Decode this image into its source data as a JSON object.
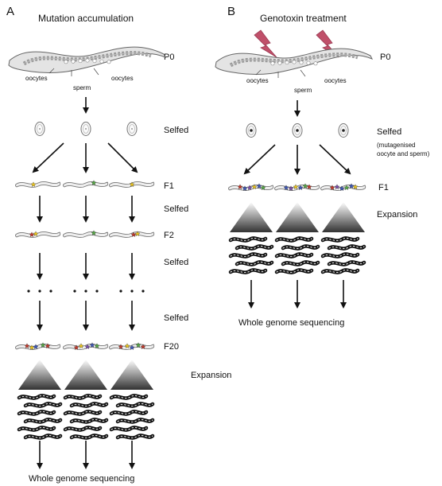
{
  "panel_a": {
    "letter": "A",
    "title": "Mutation accumulation",
    "p0": "P0",
    "oocytes_left": "oocytes",
    "oocytes_right": "oocytes",
    "sperm": "sperm",
    "selfed_1": "Selfed",
    "f1": "F1",
    "selfed_2": "Selfed",
    "f2": "F2",
    "selfed_3": "Selfed",
    "selfed_4": "Selfed",
    "f20": "F20",
    "expansion": "Expansion",
    "wgs": "Whole genome sequencing"
  },
  "panel_b": {
    "letter": "B",
    "title": "Genotoxin treatment",
    "p0": "P0",
    "oocytes_left": "oocytes",
    "oocytes_right": "oocytes",
    "sperm": "sperm",
    "selfed": "Selfed",
    "selfed_note_1": "(mutagenised",
    "selfed_note_2": "oocyte and sperm)",
    "f1": "F1",
    "expansion": "Expansion",
    "wgs": "Whole genome sequencing"
  },
  "colors": {
    "lightning": "#c0506a",
    "worm_fill": "#eeeeee",
    "worm_stroke": "#777777",
    "mutation_red": "#c0392b",
    "mutation_yellow": "#e8c320",
    "mutation_green": "#55a645",
    "mutation_blue": "#3d56b5",
    "mutation_purple": "#7a4fa8"
  }
}
